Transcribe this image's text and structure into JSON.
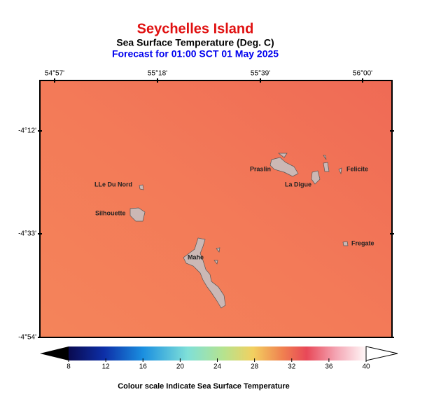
{
  "header": {
    "title": "Seychelles Island",
    "subtitle": "Sea Surface Temperature (Deg. C)",
    "forecast": "Forecast for  01:00 SCT 01 May 2025"
  },
  "map": {
    "lon_labels": [
      "54°57'",
      "55°18'",
      "55°39'",
      "56°00'"
    ],
    "lat_labels": [
      "-4°12'",
      "-4°33'",
      "-4°54'"
    ],
    "places": [
      "Praslin",
      "La Digue",
      "Felicite",
      "LLe Du Nord",
      "Silhouette",
      "Mahe",
      "Fregate"
    ]
  },
  "colorbar": {
    "ticks": [
      8,
      12,
      16,
      20,
      24,
      28,
      32,
      36,
      40
    ]
  },
  "caption": "Colour scale Indicate  Sea Surface Temperature"
}
